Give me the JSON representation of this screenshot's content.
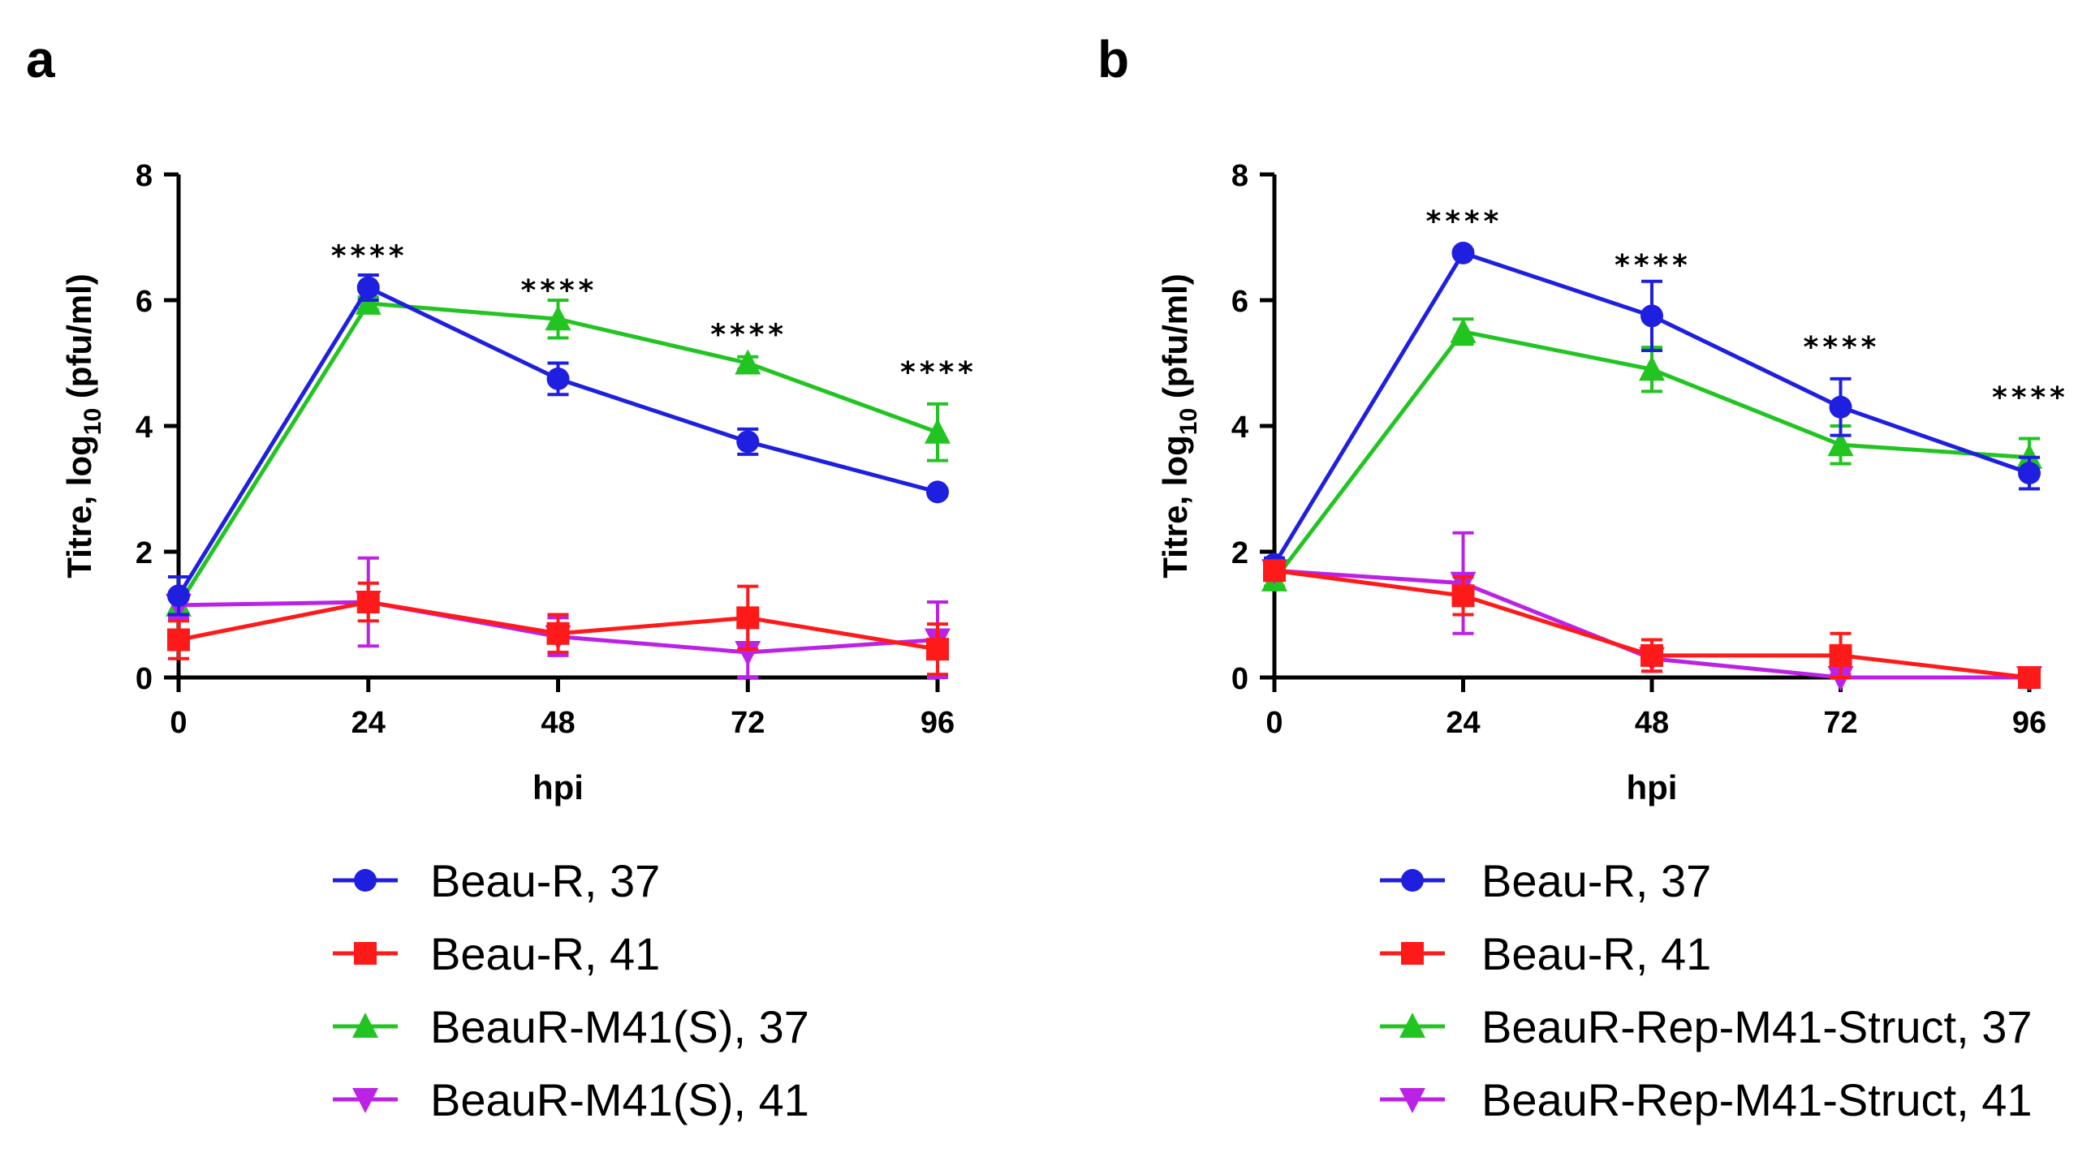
{
  "colors": {
    "blue": "#1f1fe0",
    "red": "#ff1a1a",
    "green": "#22c422",
    "magenta": "#bb22e6"
  },
  "chart_data": [
    {
      "panel": "a",
      "type": "line",
      "xlabel": "hpi",
      "ylabel_main": "Titre, log",
      "ylabel_sub": "10",
      "ylabel_tail": " (pfu/ml)",
      "xlim": [
        0,
        96
      ],
      "ylim": [
        0,
        8
      ],
      "x": [
        0,
        24,
        48,
        72,
        96
      ],
      "x_ticks": [
        "0",
        "24",
        "48",
        "72",
        "96"
      ],
      "y_ticks": [
        "0",
        "2",
        "4",
        "6",
        "8"
      ],
      "series": [
        {
          "name": "Beau-R, 37",
          "color": "#1f1fe0",
          "marker": "circle",
          "values": [
            1.3,
            6.2,
            4.75,
            3.75,
            2.95
          ],
          "errors": [
            0.3,
            0.2,
            0.25,
            0.2,
            0.05
          ]
        },
        {
          "name": "Beau-R, 41",
          "color": "#ff1a1a",
          "marker": "square",
          "values": [
            0.6,
            1.2,
            0.7,
            0.95,
            0.45
          ],
          "errors": [
            0.3,
            0.3,
            0.3,
            0.5,
            0.4
          ]
        },
        {
          "name": "BeauR-M41(S), 37",
          "color": "#22c422",
          "marker": "triangle-up",
          "values": [
            1.15,
            5.95,
            5.7,
            5.0,
            3.9
          ],
          "errors": [
            0.2,
            0.1,
            0.3,
            0.1,
            0.45
          ]
        },
        {
          "name": "BeauR-M41(S), 41",
          "color": "#bb22e6",
          "marker": "triangle-down",
          "values": [
            1.15,
            1.2,
            0.65,
            0.4,
            0.6
          ],
          "errors": [
            0.2,
            0.7,
            0.3,
            0.4,
            0.6
          ]
        }
      ],
      "significance": [
        {
          "x": 24,
          "y": 6.55,
          "label": "****"
        },
        {
          "x": 48,
          "y": 6.0,
          "label": "****"
        },
        {
          "x": 72,
          "y": 5.3,
          "label": "****"
        },
        {
          "x": 96,
          "y": 4.7,
          "label": "****"
        }
      ],
      "legend": [
        "Beau-R, 37",
        "Beau-R, 41",
        "BeauR-M41(S), 37",
        "BeauR-M41(S), 41"
      ]
    },
    {
      "panel": "b",
      "type": "line",
      "xlabel": "hpi",
      "ylabel_main": "Titre, log",
      "ylabel_sub": "10",
      "ylabel_tail": " (pfu/ml)",
      "xlim": [
        0,
        96
      ],
      "ylim": [
        0,
        8
      ],
      "x": [
        0,
        24,
        48,
        72,
        96
      ],
      "x_ticks": [
        "0",
        "24",
        "48",
        "72",
        "96"
      ],
      "y_ticks": [
        "0",
        "2",
        "4",
        "6",
        "8"
      ],
      "series": [
        {
          "name": "Beau-R, 37",
          "color": "#1f1fe0",
          "marker": "circle",
          "values": [
            1.8,
            6.75,
            5.75,
            4.3,
            3.25
          ],
          "errors": [
            0.1,
            0.05,
            0.55,
            0.45,
            0.25
          ]
        },
        {
          "name": "Beau-R, 41",
          "color": "#ff1a1a",
          "marker": "square",
          "values": [
            1.7,
            1.3,
            0.35,
            0.35,
            0.0
          ],
          "errors": [
            0.1,
            0.3,
            0.25,
            0.35,
            0.05
          ]
        },
        {
          "name": "BeauR-Rep-M41-Struct, 37",
          "color": "#22c422",
          "marker": "triangle-up",
          "values": [
            1.55,
            5.5,
            4.9,
            3.7,
            3.5
          ],
          "errors": [
            0.1,
            0.2,
            0.35,
            0.3,
            0.3
          ]
        },
        {
          "name": "BeauR-Rep-M41-Struct, 41",
          "color": "#bb22e6",
          "marker": "triangle-down",
          "values": [
            1.7,
            1.5,
            0.3,
            0.0,
            0.0
          ],
          "errors": [
            0.1,
            0.8,
            0.2,
            0.05,
            0.05
          ]
        }
      ],
      "significance": [
        {
          "x": 24,
          "y": 7.1,
          "label": "****"
        },
        {
          "x": 48,
          "y": 6.4,
          "label": "****"
        },
        {
          "x": 72,
          "y": 5.1,
          "label": "****"
        },
        {
          "x": 96,
          "y": 4.3,
          "label": "****"
        }
      ],
      "legend": [
        "Beau-R, 37",
        "Beau-R, 41",
        "BeauR-Rep-M41-Struct, 37",
        "BeauR-Rep-M41-Struct, 41"
      ]
    }
  ]
}
